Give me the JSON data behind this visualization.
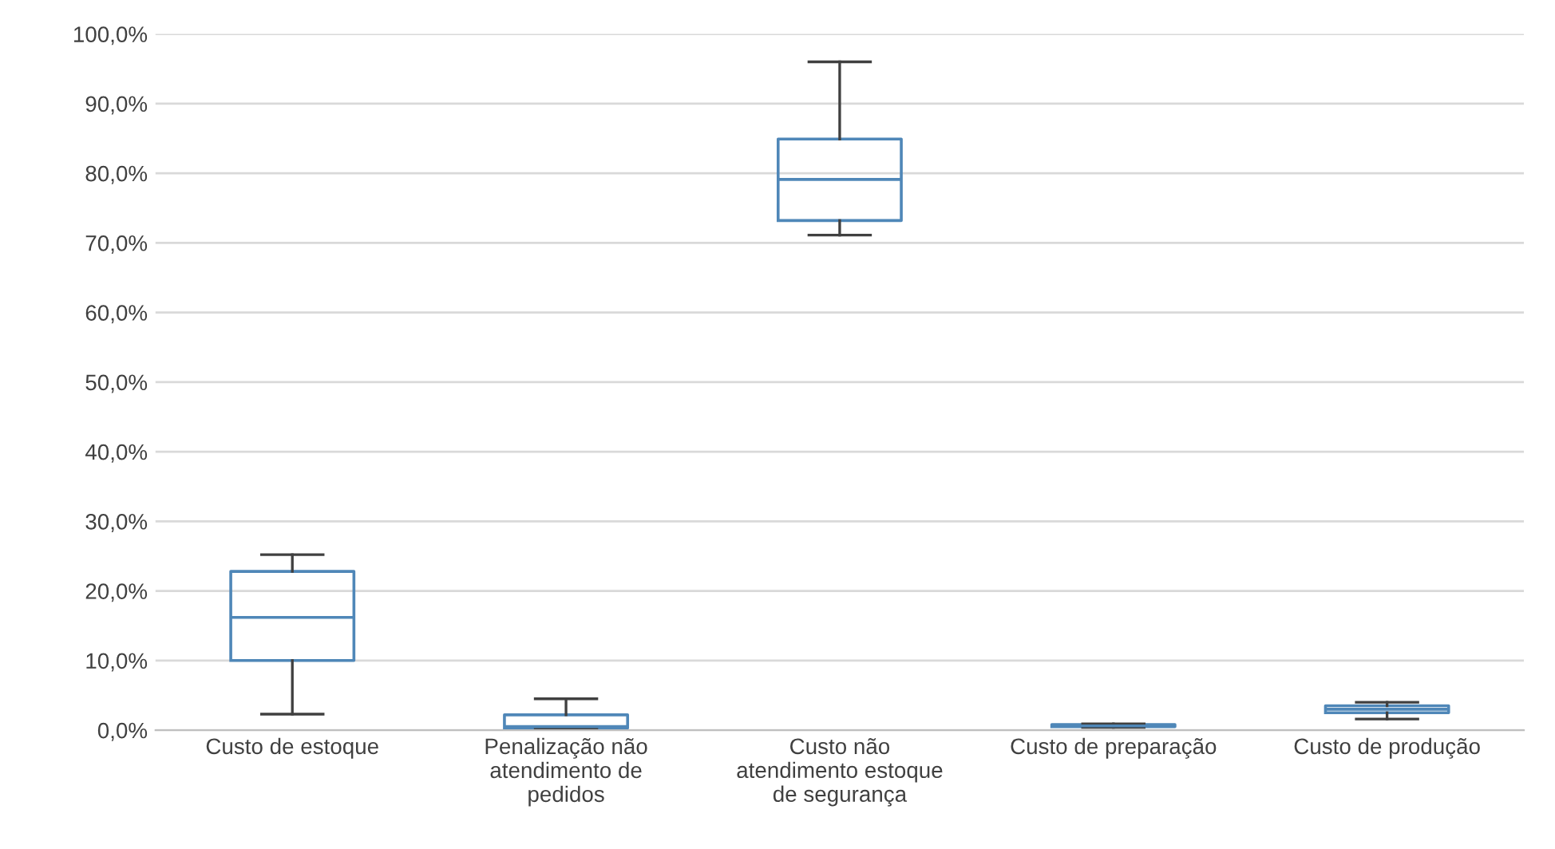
{
  "chart_data": {
    "type": "box",
    "categories": [
      "Custo de estoque",
      "Penalização não\natendimento de\npedidos",
      "Custo não\natendimento estoque\nde segurança",
      "Custo de preparação",
      "Custo de produção"
    ],
    "boxes": [
      {
        "low": 2.3,
        "q1": 10.0,
        "median": 16.2,
        "q3": 22.8,
        "high": 25.2
      },
      {
        "low": 0.2,
        "q1": 0.3,
        "median": 0.5,
        "q3": 2.2,
        "high": 4.5
      },
      {
        "low": 71.1,
        "q1": 73.2,
        "median": 79.1,
        "q3": 84.9,
        "high": 96.0
      },
      {
        "low": 0.4,
        "q1": 0.5,
        "median": 0.6,
        "q3": 0.8,
        "high": 0.9
      },
      {
        "low": 1.6,
        "q1": 2.5,
        "median": 3.0,
        "q3": 3.5,
        "high": 4.0
      }
    ],
    "color": "#4f87b8",
    "ylim": [
      0,
      100
    ],
    "yticks": [
      {
        "value": 0,
        "label": "0,0%"
      },
      {
        "value": 10,
        "label": "10,0%"
      },
      {
        "value": 20,
        "label": "20,0%"
      },
      {
        "value": 30,
        "label": "30,0%"
      },
      {
        "value": 40,
        "label": "40,0%"
      },
      {
        "value": 50,
        "label": "50,0%"
      },
      {
        "value": 60,
        "label": "60,0%"
      },
      {
        "value": 70,
        "label": "70,0%"
      },
      {
        "value": 80,
        "label": "80,0%"
      },
      {
        "value": 90,
        "label": "90,0%"
      },
      {
        "value": 100,
        "label": "100,0%"
      }
    ],
    "grid": "y"
  }
}
